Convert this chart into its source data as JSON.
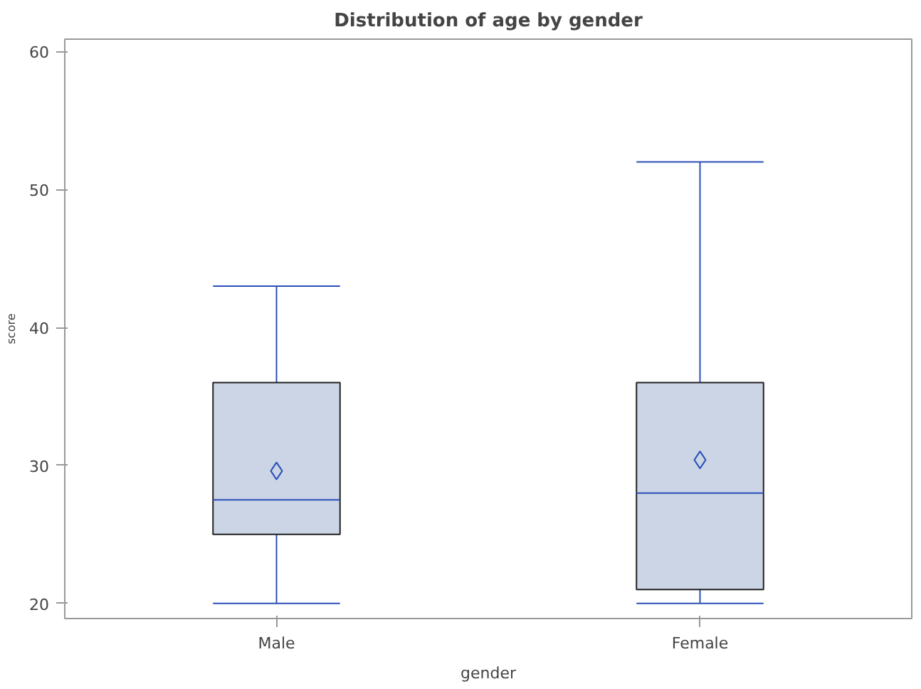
{
  "chart_data": {
    "type": "box",
    "title": "Distribution of age by gender",
    "xlabel": "gender",
    "ylabel": "score",
    "categories": [
      "Male",
      "Female"
    ],
    "boxes": [
      {
        "low": 20,
        "q1": 25,
        "median": 27.5,
        "q3": 36,
        "high": 43,
        "mean": 29.6
      },
      {
        "low": 20,
        "q1": 21,
        "median": 28,
        "q3": 36,
        "high": 52,
        "mean": 30.4
      }
    ],
    "color": "#cbd5e5",
    "ylim": [
      18.9,
      60.9
    ],
    "yticks": [
      20,
      30,
      40,
      50,
      60
    ],
    "grid": false,
    "marker": "diamond"
  }
}
